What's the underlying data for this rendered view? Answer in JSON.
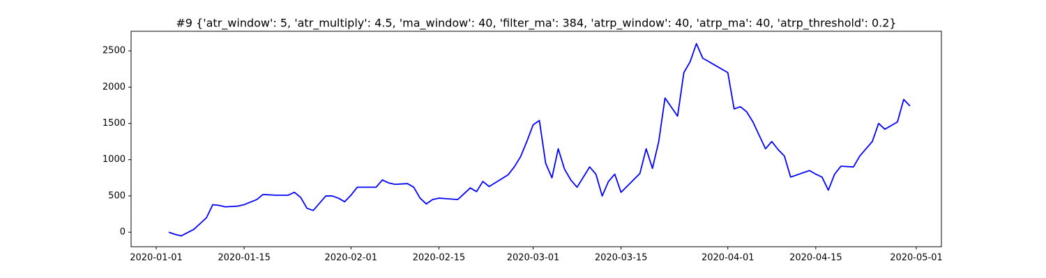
{
  "chart_data": {
    "type": "line",
    "title": "#9 {'atr_window': 5, 'atr_multiply': 4.5, 'ma_window': 40, 'filter_ma': 384, 'atrp_window': 40, 'atrp_ma': 40, 'atrp_threshold': 0.2}",
    "x": [
      "2020-01-03",
      "2020-01-04",
      "2020-01-05",
      "2020-01-07",
      "2020-01-08",
      "2020-01-09",
      "2020-01-10",
      "2020-01-11",
      "2020-01-12",
      "2020-01-14",
      "2020-01-15",
      "2020-01-17",
      "2020-01-18",
      "2020-01-20",
      "2020-01-22",
      "2020-01-23",
      "2020-01-24",
      "2020-01-25",
      "2020-01-26",
      "2020-01-28",
      "2020-01-29",
      "2020-01-30",
      "2020-01-31",
      "2020-02-01",
      "2020-02-02",
      "2020-02-04",
      "2020-02-05",
      "2020-02-06",
      "2020-02-07",
      "2020-02-08",
      "2020-02-10",
      "2020-02-11",
      "2020-02-12",
      "2020-02-13",
      "2020-02-14",
      "2020-02-15",
      "2020-02-18",
      "2020-02-19",
      "2020-02-20",
      "2020-02-21",
      "2020-02-22",
      "2020-02-23",
      "2020-02-26",
      "2020-02-27",
      "2020-02-28",
      "2020-02-29",
      "2020-03-01",
      "2020-03-02",
      "2020-03-03",
      "2020-03-04",
      "2020-03-05",
      "2020-03-06",
      "2020-03-07",
      "2020-03-08",
      "2020-03-10",
      "2020-03-11",
      "2020-03-12",
      "2020-03-13",
      "2020-03-14",
      "2020-03-15",
      "2020-03-18",
      "2020-03-19",
      "2020-03-20",
      "2020-03-21",
      "2020-03-22",
      "2020-03-24",
      "2020-03-25",
      "2020-03-26",
      "2020-03-27",
      "2020-03-28",
      "2020-03-30",
      "2020-04-01",
      "2020-04-02",
      "2020-04-03",
      "2020-04-04",
      "2020-04-05",
      "2020-04-07",
      "2020-04-08",
      "2020-04-09",
      "2020-04-10",
      "2020-04-11",
      "2020-04-14",
      "2020-04-15",
      "2020-04-16",
      "2020-04-17",
      "2020-04-18",
      "2020-04-19",
      "2020-04-21",
      "2020-04-22",
      "2020-04-23",
      "2020-04-24",
      "2020-04-25",
      "2020-04-26",
      "2020-04-28",
      "2020-04-29",
      "2020-04-30"
    ],
    "series": [
      {
        "color": "#0000ff",
        "values": [
          0,
          -30,
          -50,
          40,
          120,
          200,
          380,
          370,
          350,
          360,
          380,
          450,
          520,
          510,
          510,
          550,
          480,
          330,
          300,
          500,
          500,
          470,
          420,
          510,
          620,
          620,
          620,
          720,
          680,
          660,
          670,
          620,
          470,
          390,
          450,
          470,
          450,
          530,
          610,
          560,
          700,
          630,
          790,
          900,
          1040,
          1250,
          1480,
          1540,
          950,
          750,
          1150,
          870,
          720,
          620,
          900,
          800,
          500,
          700,
          800,
          550,
          810,
          1150,
          880,
          1250,
          1850,
          1600,
          2200,
          2350,
          2600,
          2400,
          2300,
          2200,
          1700,
          1730,
          1660,
          1520,
          1150,
          1250,
          1140,
          1050,
          760,
          850,
          800,
          760,
          580,
          800,
          910,
          900,
          1050,
          1150,
          1250,
          1500,
          1420,
          1520,
          1830,
          1740
        ]
      }
    ],
    "xlim": [
      "2019-12-28",
      "2020-05-05"
    ],
    "xticks": [
      "2020-01-01",
      "2020-01-15",
      "2020-02-01",
      "2020-02-15",
      "2020-03-01",
      "2020-03-15",
      "2020-04-01",
      "2020-04-15",
      "2020-05-01"
    ],
    "ylim": [
      -200,
      2770
    ],
    "yticks": [
      0,
      500,
      1000,
      1500,
      2000,
      2500
    ]
  }
}
